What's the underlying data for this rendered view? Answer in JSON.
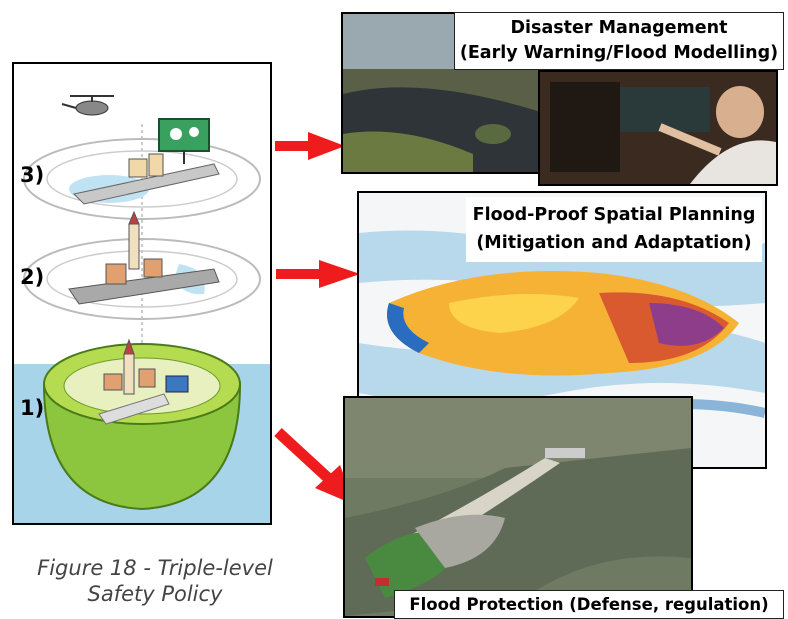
{
  "levels": [
    "3)",
    "2)",
    "1)"
  ],
  "caption": {
    "line1": "Figure 18 - Triple-level",
    "line2": "Safety Policy"
  },
  "panels": {
    "disaster": {
      "title_line1": "Disaster Management",
      "title_line2": "(Early Warning/Flood Modelling)"
    },
    "planning": {
      "title_line1": "Flood-Proof Spatial Planning",
      "title_line2": "(Mitigation and Adaptation)"
    },
    "protection": {
      "title": "Flood Protection (Defense, regulation)"
    }
  },
  "colors": {
    "arrow": "#ee1c1c",
    "water": "#a8d4ea",
    "dike_green": "#9acd32"
  }
}
